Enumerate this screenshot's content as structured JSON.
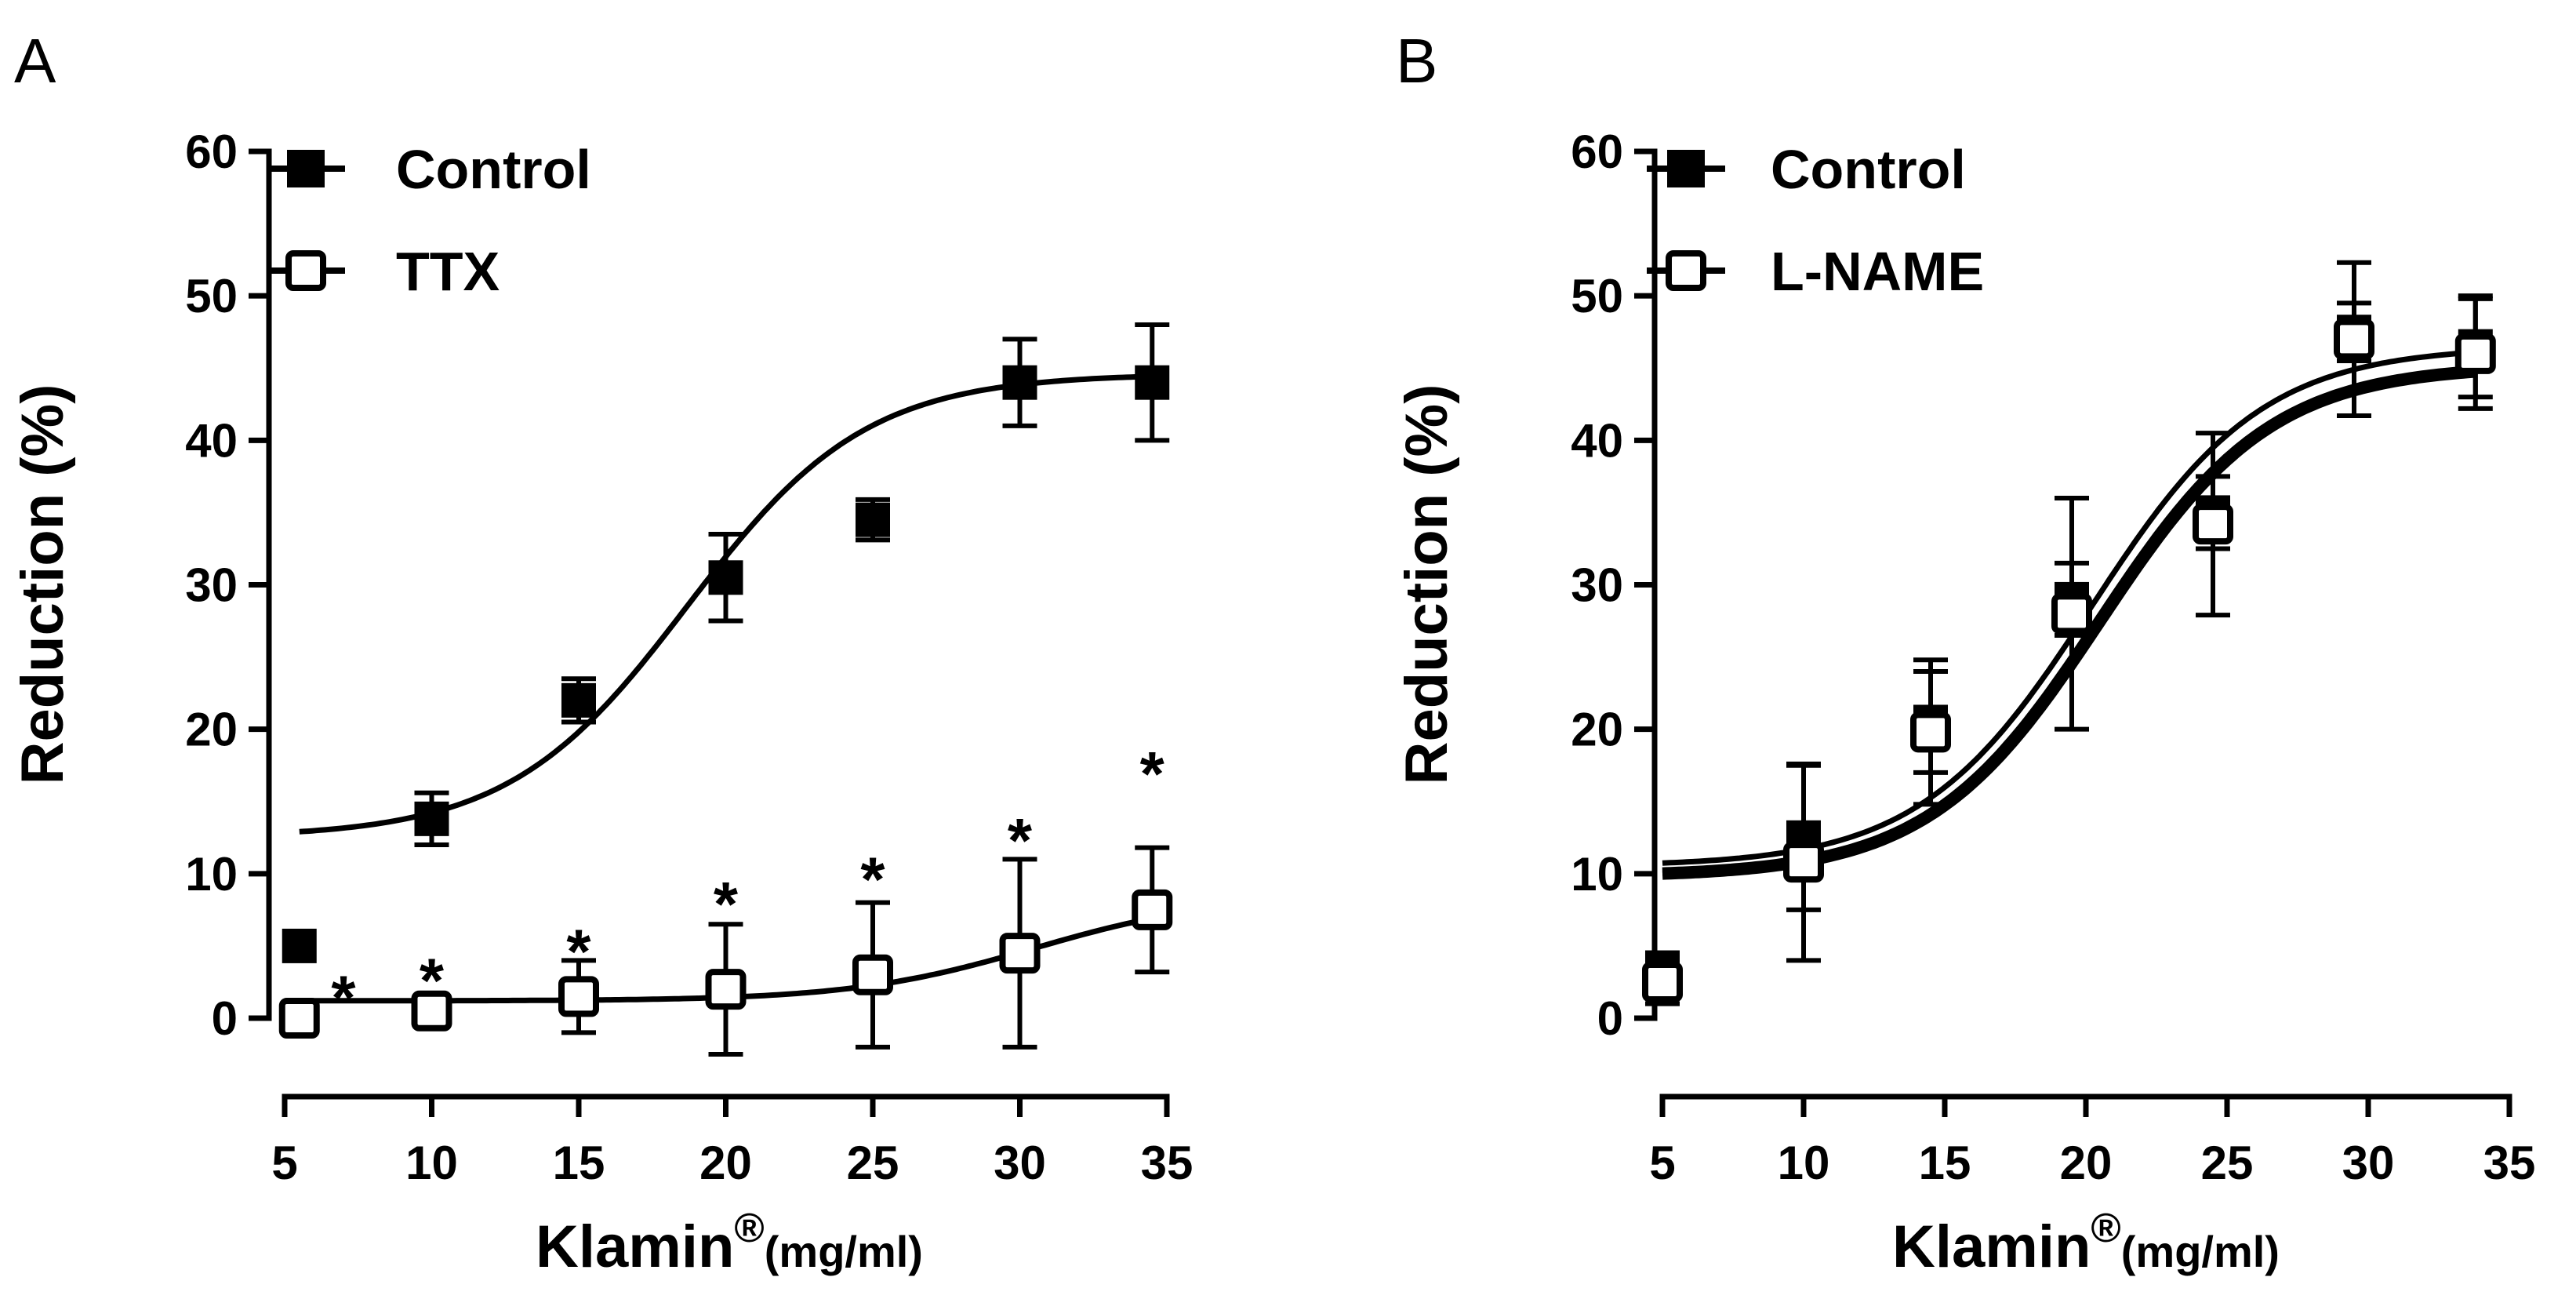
{
  "chart_data": [
    {
      "panel_label": "A",
      "type": "scatter",
      "xlabel": "Klamin",
      "xlabel_superscript": "®",
      "xlabel_unit": "(mg/ml)",
      "ylabel": "Reduction (%)",
      "xlim": [
        5,
        35
      ],
      "ylim": [
        0,
        60
      ],
      "xticks": [
        "5",
        "10",
        "15",
        "20",
        "25",
        "30",
        "35"
      ],
      "yticks": [
        "0",
        "10",
        "20",
        "30",
        "40",
        "50",
        "60"
      ],
      "legend_position": "top-left",
      "series": [
        {
          "name": "Control",
          "marker": "filled-square",
          "x": [
            5.5,
            10,
            15,
            20,
            25,
            30,
            34.5
          ],
          "y": [
            5,
            13.8,
            22,
            30.5,
            34.5,
            44,
            44
          ],
          "err": [
            0,
            1.8,
            1.5,
            3,
            1.4,
            3,
            4
          ],
          "fit": {
            "bottom": 12.5,
            "top": 44.6,
            "ec50": 18.7,
            "hill": 0.33
          }
        },
        {
          "name": "TTX",
          "marker": "open-square",
          "x": [
            5.5,
            10,
            15,
            20,
            25,
            30,
            34.5
          ],
          "y": [
            0,
            0.5,
            1.5,
            2,
            3,
            4.5,
            7.5
          ],
          "err": [
            0,
            0.6,
            2.5,
            4.5,
            5,
            6.5,
            4.3
          ],
          "fit": {
            "bottom": 1.2,
            "top": 8.5,
            "ec50": 30.5,
            "hill": 0.32
          }
        }
      ],
      "annotations": [
        {
          "text": "*",
          "x": 7,
          "y": 2.3
        },
        {
          "text": "*",
          "x": 10,
          "y": 3.5
        },
        {
          "text": "*",
          "x": 15,
          "y": 5.5
        },
        {
          "text": "*",
          "x": 20,
          "y": 8.8
        },
        {
          "text": "*",
          "x": 25,
          "y": 10.5
        },
        {
          "text": "*",
          "x": 30,
          "y": 13.2
        },
        {
          "text": "*",
          "x": 34.5,
          "y": 17.8
        }
      ]
    },
    {
      "panel_label": "B",
      "type": "scatter",
      "xlabel": "Klamin",
      "xlabel_superscript": "®",
      "xlabel_unit": "(mg/ml)",
      "ylabel": "Reduction (%)",
      "xlim": [
        5,
        35
      ],
      "ylim": [
        0,
        60
      ],
      "xticks": [
        "5",
        "10",
        "15",
        "20",
        "25",
        "30",
        "35"
      ],
      "yticks": [
        "0",
        "10",
        "20",
        "30",
        "40",
        "50",
        "60"
      ],
      "legend_position": "top-left",
      "series": [
        {
          "name": "Control",
          "marker": "filled-square",
          "x": [
            5,
            10,
            14.5,
            19.5,
            24.5,
            29.5,
            33.8
          ],
          "y": [
            3.5,
            12.5,
            20.5,
            29,
            35,
            47.5,
            46.5
          ],
          "err": [
            1,
            5,
            3.5,
            2.5,
            2.5,
            2,
            3.5
          ],
          "fit": {
            "bottom": 10.5,
            "top": 46.5,
            "ec50": 20.2,
            "hill": 0.33
          }
        },
        {
          "name": "L-NAME",
          "marker": "open-square",
          "x": [
            5,
            10,
            14.5,
            19.5,
            24.5,
            29.5,
            33.8
          ],
          "y": [
            2.5,
            10.8,
            19.8,
            28,
            34.2,
            47,
            46
          ],
          "err": [
            1.5,
            6.8,
            5,
            8,
            6.3,
            5.3,
            3.8
          ],
          "fit": {
            "bottom": 9.8,
            "top": 45.2,
            "ec50": 20.5,
            "hill": 0.33
          }
        }
      ],
      "annotations": []
    }
  ]
}
